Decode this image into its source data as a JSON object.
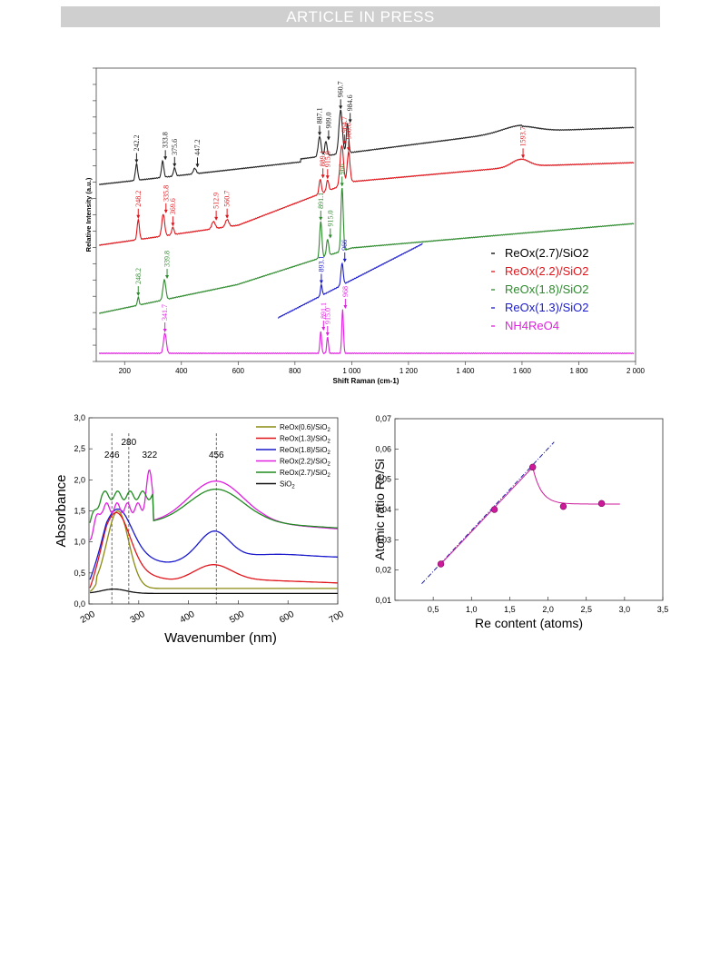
{
  "banner": {
    "text": "ARTICLE IN PRESS"
  },
  "chart_data": [
    {
      "type": "line",
      "title": "",
      "xlabel": "Shift Raman (cm-1)",
      "ylabel": "Relative Intensity (a.u.)",
      "xlim": [
        100,
        2000
      ],
      "xticks": [
        {
          "v": 200,
          "label": "200"
        },
        {
          "v": 400,
          "label": "400"
        },
        {
          "v": 600,
          "label": "600"
        },
        {
          "v": 800,
          "label": "800"
        },
        {
          "v": 1000,
          "label": "1 000"
        },
        {
          "v": 1200,
          "label": "1 200"
        },
        {
          "v": 1400,
          "label": "1 400"
        },
        {
          "v": 1600,
          "label": "1 600"
        },
        {
          "v": 1800,
          "label": "1 800"
        },
        {
          "v": 2000,
          "label": "2 000"
        }
      ],
      "grid": false,
      "legend_position": "bottom-right",
      "legend": [
        {
          "name": "ReOx(2.7)/SiO2",
          "color": "#000000"
        },
        {
          "name": "ReOx(2.2)/SiO2",
          "color": "#e0151b"
        },
        {
          "name": "ReOx(1.8)/SiO2",
          "color": "#2e8a2e"
        },
        {
          "name": "ReOx(1.3)/SiO2",
          "color": "#1a1acc"
        },
        {
          "name": "NH4ReO4",
          "color": "#e020e0"
        }
      ],
      "series": [
        {
          "color": "#222222",
          "peaks": [
            "242.2",
            "333.8",
            "375.6",
            "447.2",
            "887.1",
            "909.0",
            "960.7",
            "984.6"
          ]
        },
        {
          "color": "#e0151b",
          "peaks": [
            "248.2",
            "335.8",
            "369.6",
            "512.9",
            "560.7",
            "889.1",
            "915.0",
            "964.7",
            "988.6",
            "1593.7"
          ]
        },
        {
          "color": "#2e8a2e",
          "peaks": [
            "248.2",
            "339.8",
            "891.1",
            "915.0",
            "966"
          ]
        },
        {
          "color": "#1a1acc",
          "peaks": [
            "893.1",
            "966"
          ]
        },
        {
          "color": "#e020e0",
          "peaks": [
            "341.7",
            "891.1",
            "915.0",
            "968"
          ]
        }
      ]
    },
    {
      "type": "line",
      "title": "",
      "xlabel": "Wavenumber (nm)",
      "ylabel": "Absorbance",
      "xlim": [
        200,
        700
      ],
      "ylim": [
        0,
        3
      ],
      "xticks": [
        "200",
        "300",
        "400",
        "500",
        "600",
        "700"
      ],
      "yticks": [
        "0,0",
        "0,5",
        "1,0",
        "1,5",
        "2,0",
        "2,5",
        "3,0"
      ],
      "grid": false,
      "legend_position": "top-right",
      "markers": [
        "246",
        "280",
        "322",
        "456"
      ],
      "series": [
        {
          "name": "ReOx(0.6)/SiO",
          "sub": "2",
          "color": "#8a8a10"
        },
        {
          "name": "ReOx(1.3)/SiO",
          "sub": "2",
          "color": "#e0151b"
        },
        {
          "name": "ReOx(1.8)/SiO",
          "sub": "2",
          "color": "#1a1acc"
        },
        {
          "name": "ReOx(2.2)/SiO",
          "sub": "2",
          "color": "#e020e0"
        },
        {
          "name": "ReOx(2.7)/SiO",
          "sub": "2",
          "color": "#1f8a1f"
        },
        {
          "name": "SiO",
          "sub": "2",
          "color": "#111111"
        }
      ]
    },
    {
      "type": "scatter",
      "title": "",
      "xlabel": "Re content (atoms)",
      "ylabel": "Atomic ratio Re/Si",
      "xlim": [
        0,
        3.5
      ],
      "ylim": [
        0.01,
        0.07
      ],
      "xticks": [
        "0,5",
        "1,0",
        "1,5",
        "2,0",
        "2,5",
        "3,0",
        "3,5"
      ],
      "yticks": [
        "0,01",
        "0,02",
        "0,03",
        "0,04",
        "0,05",
        "0,06",
        "0,07"
      ],
      "points": [
        {
          "x": 0.6,
          "y": 0.022
        },
        {
          "x": 1.3,
          "y": 0.04
        },
        {
          "x": 1.8,
          "y": 0.054
        },
        {
          "x": 2.2,
          "y": 0.041
        },
        {
          "x": 2.7,
          "y": 0.042
        }
      ],
      "fit_line": {
        "x": [
          0.35,
          2.08
        ],
        "y": [
          0.0155,
          0.0623
        ]
      },
      "point_color": "#cc1a9a"
    }
  ]
}
